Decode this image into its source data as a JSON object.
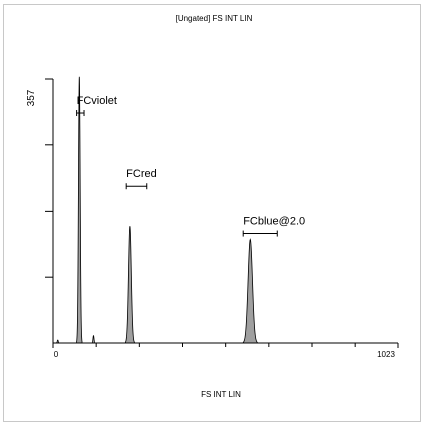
{
  "chart_data": {
    "type": "histogram",
    "title": "[Ungated] FS INT LIN",
    "xlabel": "FS INT LIN",
    "ylabel": "",
    "xlim": [
      0,
      1023
    ],
    "ylim": [
      0,
      357
    ],
    "x_tick_labels": {
      "min": "0",
      "max": "1023"
    },
    "y_tick_label": "357",
    "x_minor_ticks": [
      128,
      256,
      384,
      512,
      640,
      768,
      896
    ],
    "y_minor_ticks": [
      89,
      178,
      268
    ],
    "fill_color": "#a0a0a0",
    "gates": [
      {
        "name": "FCviolet",
        "x1": 70,
        "x2": 92,
        "level": 311
      },
      {
        "name": "FCred",
        "x1": 217,
        "x2": 278,
        "level": 212
      },
      {
        "name": "FCblue@2.0",
        "x1": 564,
        "x2": 665,
        "level": 148
      }
    ],
    "peaks": [
      {
        "center": 78,
        "height": 360,
        "sigma": 2.5
      },
      {
        "center": 228,
        "height": 158,
        "sigma": 4.2
      },
      {
        "center": 585,
        "height": 140,
        "sigma": 6.5
      },
      {
        "center": 120,
        "height": 10,
        "sigma": 1.5
      },
      {
        "center": 14,
        "height": 4,
        "sigma": 1.5
      }
    ]
  }
}
